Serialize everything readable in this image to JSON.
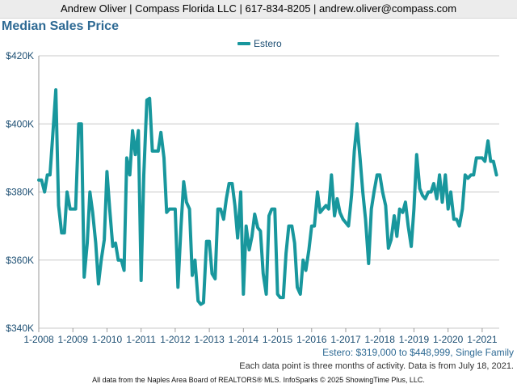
{
  "header": {
    "contact": "Andrew Oliver | Compass Florida LLC | 617-834-8205 | andrew.oliver@compass.com"
  },
  "chart_data": {
    "type": "line",
    "title": "Median Sales Price",
    "series": [
      {
        "name": "Estero",
        "color": "#18979d",
        "x": [
          2008.0,
          2008.08,
          2008.17,
          2008.25,
          2008.33,
          2008.42,
          2008.5,
          2008.58,
          2008.67,
          2008.75,
          2008.83,
          2008.92,
          2009.0,
          2009.08,
          2009.17,
          2009.25,
          2009.33,
          2009.42,
          2009.5,
          2009.58,
          2009.67,
          2009.75,
          2009.83,
          2009.92,
          2010.0,
          2010.08,
          2010.17,
          2010.25,
          2010.33,
          2010.42,
          2010.5,
          2010.58,
          2010.67,
          2010.75,
          2010.83,
          2010.92,
          2011.0,
          2011.08,
          2011.17,
          2011.25,
          2011.33,
          2011.42,
          2011.5,
          2011.58,
          2011.67,
          2011.75,
          2011.83,
          2011.92,
          2012.0,
          2012.08,
          2012.17,
          2012.25,
          2012.33,
          2012.42,
          2012.5,
          2012.58,
          2012.67,
          2012.75,
          2012.83,
          2012.92,
          2013.0,
          2013.08,
          2013.17,
          2013.25,
          2013.33,
          2013.42,
          2013.5,
          2013.58,
          2013.67,
          2013.75,
          2013.83,
          2013.92,
          2014.0,
          2014.08,
          2014.17,
          2014.25,
          2014.33,
          2014.42,
          2014.5,
          2014.58,
          2014.67,
          2014.75,
          2014.83,
          2014.92,
          2015.0,
          2015.08,
          2015.17,
          2015.25,
          2015.33,
          2015.42,
          2015.5,
          2015.58,
          2015.67,
          2015.75,
          2015.83,
          2015.92,
          2016.0,
          2016.08,
          2016.17,
          2016.25,
          2016.33,
          2016.42,
          2016.5,
          2016.58,
          2016.67,
          2016.75,
          2016.83,
          2016.92,
          2017.0,
          2017.08,
          2017.17,
          2017.25,
          2017.33,
          2017.42,
          2017.5,
          2017.58,
          2017.67,
          2017.75,
          2017.83,
          2017.92,
          2018.0,
          2018.08,
          2018.17,
          2018.25,
          2018.33,
          2018.42,
          2018.5,
          2018.58,
          2018.67,
          2018.75,
          2018.83,
          2018.92,
          2019.0,
          2019.08,
          2019.17,
          2019.25,
          2019.33,
          2019.42,
          2019.5,
          2019.58,
          2019.67,
          2019.75,
          2019.83,
          2019.92,
          2020.0,
          2020.08,
          2020.17,
          2020.25,
          2020.33,
          2020.42,
          2020.5,
          2020.58,
          2020.67,
          2020.75,
          2020.83,
          2020.92,
          2021.0,
          2021.08,
          2021.17,
          2021.25,
          2021.33,
          2021.42
        ],
        "values": [
          383500,
          383500,
          380000,
          385000,
          385000,
          398000,
          410000,
          376000,
          368000,
          368000,
          380000,
          375000,
          375000,
          375000,
          400000,
          400000,
          355000,
          365000,
          380000,
          374000,
          365000,
          353000,
          360000,
          366000,
          386000,
          375000,
          364000,
          365000,
          360000,
          360000,
          357000,
          390000,
          385000,
          398000,
          391000,
          398000,
          354000,
          385000,
          407000,
          407500,
          392000,
          392000,
          392000,
          397500,
          390000,
          374000,
          375000,
          375000,
          375000,
          352000,
          370000,
          383000,
          377000,
          375000,
          355500,
          360000,
          348000,
          347000,
          347500,
          365500,
          365500,
          356000,
          354500,
          375000,
          375000,
          372000,
          378000,
          382500,
          382500,
          376000,
          366500,
          380000,
          350000,
          370000,
          363000,
          367000,
          373500,
          369500,
          368500,
          356000,
          350000,
          373000,
          375000,
          375000,
          350000,
          349000,
          349000,
          362000,
          370000,
          370000,
          365000,
          352000,
          350000,
          360000,
          357000,
          363000,
          370000,
          370000,
          380000,
          374000,
          375000,
          376000,
          375000,
          385000,
          373000,
          378000,
          374000,
          372000,
          371000,
          370000,
          379000,
          392000,
          400000,
          390000,
          380000,
          372000,
          359000,
          375000,
          380000,
          385000,
          385000,
          380000,
          376000,
          363500,
          366000,
          373000,
          367000,
          375000,
          374000,
          377000,
          370000,
          364000,
          375000,
          391000,
          381000,
          379000,
          378000,
          380000,
          380000,
          382500,
          378000,
          385000,
          377000,
          385000,
          375000,
          380000,
          372000,
          372000,
          370000,
          375000,
          385000,
          384000,
          385000,
          385000,
          390000,
          390000,
          390000,
          389000,
          395000,
          389000,
          389000,
          385000
        ]
      }
    ],
    "xlabels": [
      "1-2008",
      "1-2009",
      "1-2010",
      "1-2011",
      "1-2012",
      "1-2013",
      "1-2014",
      "1-2015",
      "1-2016",
      "1-2017",
      "1-2018",
      "1-2019",
      "1-2020",
      "1-2021"
    ],
    "xticks": [
      2008,
      2009,
      2010,
      2011,
      2012,
      2013,
      2014,
      2015,
      2016,
      2017,
      2018,
      2019,
      2020,
      2021
    ],
    "xlim": [
      2008.0,
      2021.5
    ],
    "yticks": [
      340000,
      360000,
      380000,
      400000,
      420000
    ],
    "ylabels": [
      "$340K",
      "$360K",
      "$380K",
      "$400K",
      "$420K"
    ],
    "ylim": [
      340000,
      420000
    ],
    "grid": true,
    "legend": "top-center"
  },
  "notes": {
    "range": "Estero: $319,000 to $448,999, Single Family",
    "activity": "Each data point is three months of activity. Data is from July 18, 2021."
  },
  "footer": {
    "source": "All data from the Naples Area Board of REALTORS® MLS. InfoSparks © 2025 ShowingTime Plus, LLC."
  }
}
